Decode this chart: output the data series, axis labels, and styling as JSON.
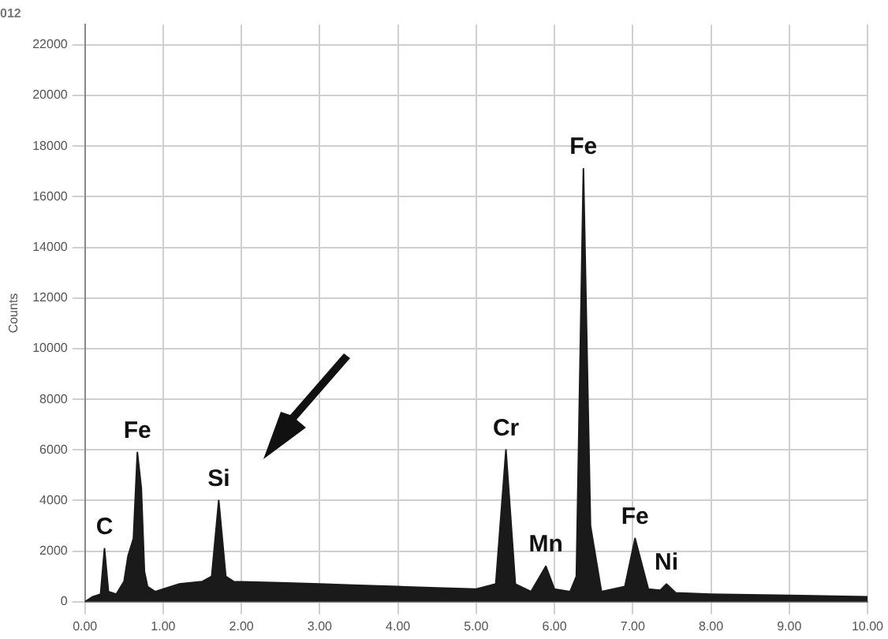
{
  "chart_data": {
    "type": "area",
    "title": "012",
    "ylabel": "Counts",
    "xlim": [
      0,
      10
    ],
    "xticks": [
      {
        "value": 0,
        "label": "0.00"
      },
      {
        "value": 1,
        "label": "1.00"
      },
      {
        "value": 2,
        "label": "2.00"
      },
      {
        "value": 3,
        "label": "3.00"
      },
      {
        "value": 4,
        "label": "4.00"
      },
      {
        "value": 5,
        "label": "5.00"
      },
      {
        "value": 6,
        "label": "6.00"
      },
      {
        "value": 7,
        "label": "7.00"
      },
      {
        "value": 8,
        "label": "8.00"
      },
      {
        "value": 9,
        "label": "9.00"
      },
      {
        "value": 10,
        "label": "10.00"
      }
    ],
    "ylim": [
      0,
      22800
    ],
    "yticks": [
      0,
      2000,
      4000,
      6000,
      8000,
      10000,
      12000,
      14000,
      16000,
      18000,
      20000,
      22000
    ],
    "grid": true,
    "legend": false,
    "series": [
      {
        "color": "#1a1a1a",
        "x": [
          0,
          0.1,
          0.2,
          0.25,
          0.3,
          0.4,
          0.5,
          0.55,
          0.62,
          0.67,
          0.72,
          0.76,
          0.8,
          0.9,
          1.0,
          1.2,
          1.5,
          1.62,
          1.71,
          1.8,
          1.9,
          2.5,
          3.0,
          3.5,
          4.0,
          4.5,
          5.0,
          5.25,
          5.38,
          5.5,
          5.7,
          5.89,
          6.0,
          6.2,
          6.28,
          6.37,
          6.46,
          6.6,
          6.9,
          7.03,
          7.2,
          7.35,
          7.43,
          7.55,
          8.0,
          9.0,
          10
        ],
        "values": [
          0,
          200,
          300,
          2100,
          400,
          300,
          800,
          1800,
          2500,
          5900,
          4500,
          1200,
          600,
          400,
          500,
          700,
          800,
          1000,
          4000,
          1000,
          800,
          750,
          700,
          650,
          600,
          550,
          500,
          700,
          6000,
          700,
          400,
          1400,
          500,
          400,
          1000,
          17100,
          3000,
          400,
          600,
          2500,
          500,
          450,
          700,
          350,
          300,
          250,
          200
        ]
      }
    ],
    "annotations": [
      {
        "text": "C",
        "x": 0.25,
        "y": 2100
      },
      {
        "text": "Fe",
        "x": 0.67,
        "y": 5900
      },
      {
        "text": "Si",
        "x": 1.71,
        "y": 4000
      },
      {
        "text": "Cr",
        "x": 5.38,
        "y": 6000
      },
      {
        "text": "Mn",
        "x": 5.89,
        "y": 1400
      },
      {
        "text": "Fe",
        "x": 6.37,
        "y": 17100
      },
      {
        "text": "Fe",
        "x": 7.03,
        "y": 2500
      },
      {
        "text": "Ni",
        "x": 7.43,
        "y": 700
      }
    ]
  }
}
